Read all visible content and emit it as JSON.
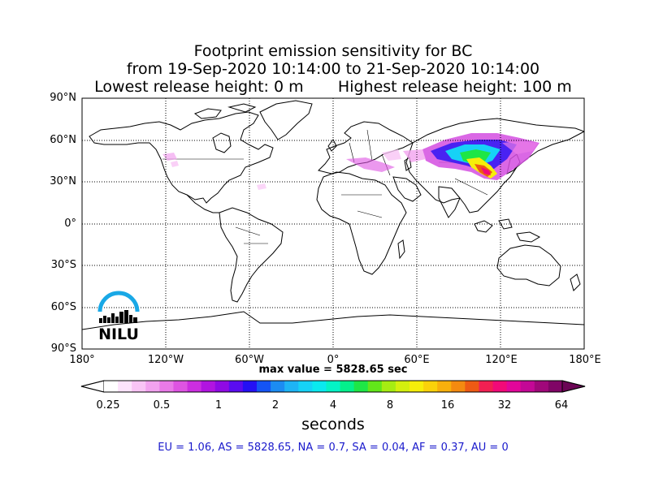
{
  "title": {
    "line1": "Footprint emission sensitivity for BC",
    "line2": "from 19-Sep-2020 10:14:00 to 21-Sep-2020 10:14:00",
    "line3_left": "Lowest release height: 0 m",
    "line3_right": "Highest release height: 100 m"
  },
  "map": {
    "lat_labels": [
      "90°N",
      "60°N",
      "30°N",
      "0°",
      "30°S",
      "60°S",
      "90°S"
    ],
    "lon_labels": [
      "180°",
      "120°W",
      "60°W",
      "0°",
      "60°E",
      "120°E",
      "180°E"
    ],
    "max_value_label": "max value = 5828.65 sec"
  },
  "colorbar": {
    "tick_labels": [
      "0.25",
      "0.5",
      "1",
      "2",
      "4",
      "8",
      "16",
      "32",
      "64"
    ],
    "unit": "seconds",
    "colors": [
      "#ffffff",
      "#fde3fc",
      "#f9c4f5",
      "#f2a2ef",
      "#e97ae8",
      "#de54e2",
      "#cc2ee0",
      "#b114e0",
      "#8f0ae4",
      "#5a0cf0",
      "#2410f5",
      "#1454f5",
      "#1c8cf2",
      "#1eb4f5",
      "#16d2f6",
      "#0ae9ef",
      "#04f3c6",
      "#04f08c",
      "#1ee646",
      "#62e61a",
      "#a6ec12",
      "#d4f00e",
      "#f6ee0a",
      "#fad20a",
      "#f8b00c",
      "#f48a10",
      "#ee5a14",
      "#f22052",
      "#f20a78",
      "#e2069a",
      "#c40896",
      "#a0087a",
      "#800566"
    ]
  },
  "regions_text": "EU = 1.06,  AS = 5828.65,  NA = 0.7,  SA = 0.04,  AF = 0.37,  AU = 0",
  "logo": {
    "text": "NILU",
    "arc_color": "#19a8e6"
  }
}
